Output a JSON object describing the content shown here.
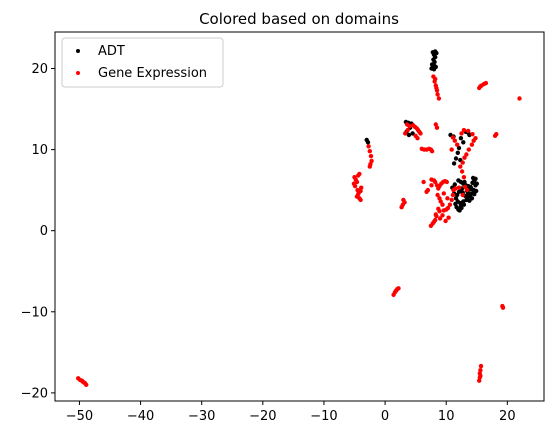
{
  "chart_data": {
    "type": "scatter",
    "title": "Colored based on domains",
    "xlabel": "",
    "ylabel": "",
    "xlim": [
      -54,
      26
    ],
    "ylim": [
      -21,
      24.5
    ],
    "xticks": [
      -50,
      -40,
      -30,
      -20,
      -10,
      0,
      10,
      20
    ],
    "yticks": [
      -20,
      -10,
      0,
      10,
      20
    ],
    "grid": false,
    "legend_position": "top-left",
    "series": [
      {
        "name": "ADT",
        "color": "#000000",
        "points": [
          [
            7.8,
            22.0
          ],
          [
            8.0,
            21.7
          ],
          [
            8.2,
            21.4
          ],
          [
            7.9,
            21.1
          ],
          [
            8.1,
            20.8
          ],
          [
            7.7,
            20.5
          ],
          [
            8.3,
            20.2
          ],
          [
            8.0,
            19.9
          ],
          [
            8.4,
            21.9
          ],
          [
            7.6,
            20.0
          ],
          [
            8.1,
            20.3
          ],
          [
            8.2,
            22.1
          ],
          [
            3.4,
            13.4
          ],
          [
            3.8,
            13.3
          ],
          [
            4.3,
            13.2
          ],
          [
            4.1,
            12.7
          ],
          [
            3.5,
            12.2
          ],
          [
            4.5,
            12.0
          ],
          [
            3.9,
            11.8
          ],
          [
            -3.0,
            11.2
          ],
          [
            -2.8,
            10.9
          ],
          [
            13.2,
            12.2
          ],
          [
            13.6,
            12.1
          ],
          [
            13.8,
            11.8
          ],
          [
            12.4,
            11.4
          ],
          [
            12.8,
            10.9
          ],
          [
            12.1,
            10.2
          ],
          [
            11.9,
            9.6
          ],
          [
            11.6,
            8.9
          ],
          [
            11.3,
            8.3
          ],
          [
            12.3,
            8.7
          ],
          [
            12.0,
            6.2
          ],
          [
            12.4,
            6.0
          ],
          [
            12.8,
            5.8
          ],
          [
            13.2,
            5.6
          ],
          [
            13.6,
            5.5
          ],
          [
            14.0,
            5.4
          ],
          [
            14.3,
            5.9
          ],
          [
            14.6,
            6.2
          ],
          [
            14.8,
            5.6
          ],
          [
            14.5,
            5.0
          ],
          [
            14.2,
            4.6
          ],
          [
            13.9,
            4.3
          ],
          [
            13.5,
            4.1
          ],
          [
            13.1,
            4.3
          ],
          [
            12.7,
            4.7
          ],
          [
            12.4,
            5.1
          ],
          [
            12.1,
            4.8
          ],
          [
            11.8,
            4.4
          ],
          [
            11.6,
            4.0
          ],
          [
            11.9,
            3.6
          ],
          [
            12.3,
            3.4
          ],
          [
            12.8,
            3.6
          ],
          [
            13.3,
            3.8
          ],
          [
            13.8,
            3.7
          ],
          [
            14.2,
            4.0
          ],
          [
            14.6,
            4.5
          ],
          [
            14.9,
            4.9
          ],
          [
            15.0,
            5.8
          ],
          [
            14.8,
            6.4
          ],
          [
            14.4,
            6.5
          ],
          [
            13.0,
            6.0
          ],
          [
            12.6,
            5.2
          ],
          [
            13.4,
            4.9
          ],
          [
            13.9,
            5.1
          ],
          [
            12.9,
            3.2
          ],
          [
            12.5,
            2.8
          ],
          [
            12.2,
            2.5
          ],
          [
            11.7,
            2.9
          ],
          [
            11.5,
            3.3
          ],
          [
            12.0,
            2.6
          ],
          [
            12.4,
            3.0
          ],
          [
            13.6,
            4.6
          ],
          [
            14.1,
            5.2
          ],
          [
            11.3,
            4.6
          ],
          [
            11.0,
            5.3
          ],
          [
            11.4,
            5.7
          ],
          [
            10.7,
            11.8
          ],
          [
            11.2,
            11.6
          ]
        ]
      },
      {
        "name": "Gene Expression",
        "color": "#ff0000",
        "points": [
          [
            7.9,
            19.0
          ],
          [
            8.1,
            18.4
          ],
          [
            8.3,
            17.9
          ],
          [
            8.5,
            17.3
          ],
          [
            8.6,
            16.8
          ],
          [
            8.8,
            16.3
          ],
          [
            8.2,
            18.7
          ],
          [
            8.4,
            17.6
          ],
          [
            15.4,
            17.6
          ],
          [
            15.8,
            17.9
          ],
          [
            16.2,
            18.1
          ],
          [
            16.5,
            18.2
          ],
          [
            15.6,
            17.8
          ],
          [
            22.0,
            16.3
          ],
          [
            18.0,
            11.7
          ],
          [
            18.2,
            11.9
          ],
          [
            3.6,
            13.1
          ],
          [
            4.0,
            12.9
          ],
          [
            4.6,
            13.0
          ],
          [
            4.9,
            12.8
          ],
          [
            5.2,
            12.6
          ],
          [
            5.4,
            12.4
          ],
          [
            5.6,
            12.2
          ],
          [
            5.8,
            12.0
          ],
          [
            3.7,
            12.4
          ],
          [
            3.3,
            12.0
          ],
          [
            5.0,
            11.7
          ],
          [
            5.3,
            11.4
          ],
          [
            6.0,
            10.1
          ],
          [
            6.4,
            10.0
          ],
          [
            6.8,
            10.0
          ],
          [
            7.2,
            10.1
          ],
          [
            7.5,
            10.0
          ],
          [
            7.7,
            9.8
          ],
          [
            -2.7,
            10.4
          ],
          [
            -2.5,
            9.8
          ],
          [
            -2.3,
            9.2
          ],
          [
            -2.2,
            8.6
          ],
          [
            -2.4,
            8.2
          ],
          [
            -2.5,
            7.9
          ],
          [
            -5.0,
            6.6
          ],
          [
            -4.8,
            6.3
          ],
          [
            -4.6,
            6.0
          ],
          [
            -5.1,
            5.8
          ],
          [
            -4.9,
            5.5
          ],
          [
            -4.4,
            6.8
          ],
          [
            -4.2,
            7.0
          ],
          [
            -4.5,
            5.0
          ],
          [
            -4.3,
            4.7
          ],
          [
            -4.0,
            4.9
          ],
          [
            -4.6,
            4.2
          ],
          [
            -4.2,
            4.0
          ],
          [
            -4.0,
            3.8
          ],
          [
            -4.4,
            4.5
          ],
          [
            -3.9,
            5.3
          ],
          [
            2.9,
            3.2
          ],
          [
            3.2,
            3.5
          ],
          [
            3.0,
            3.8
          ],
          [
            2.7,
            2.9
          ],
          [
            6.8,
            4.8
          ],
          [
            7.0,
            5.0
          ],
          [
            8.0,
            6.2
          ],
          [
            8.2,
            6.0
          ],
          [
            8.5,
            5.6
          ],
          [
            8.7,
            5.2
          ],
          [
            8.9,
            5.5
          ],
          [
            9.2,
            5.8
          ],
          [
            9.5,
            6.0
          ],
          [
            9.8,
            6.1
          ],
          [
            10.1,
            6.0
          ],
          [
            8.6,
            4.4
          ],
          [
            8.9,
            4.0
          ],
          [
            9.1,
            3.6
          ],
          [
            9.4,
            3.2
          ],
          [
            8.7,
            2.7
          ],
          [
            8.9,
            2.4
          ],
          [
            8.4,
            1.8
          ],
          [
            8.2,
            1.3
          ],
          [
            7.8,
            0.9
          ],
          [
            7.5,
            0.6
          ],
          [
            8.0,
            1.1
          ],
          [
            8.3,
            2.0
          ],
          [
            9.0,
            1.5
          ],
          [
            9.4,
            1.9
          ],
          [
            9.6,
            2.5
          ],
          [
            10.0,
            2.6
          ],
          [
            10.3,
            2.8
          ],
          [
            10.6,
            3.2
          ],
          [
            10.9,
            3.8
          ],
          [
            11.1,
            4.4
          ],
          [
            11.2,
            5.0
          ],
          [
            11.5,
            5.2
          ],
          [
            12.1,
            5.3
          ],
          [
            12.7,
            4.4
          ],
          [
            13.4,
            5.0
          ],
          [
            13.1,
            5.4
          ],
          [
            12.9,
            6.6
          ],
          [
            12.6,
            7.3
          ],
          [
            12.3,
            7.9
          ],
          [
            12.7,
            8.4
          ],
          [
            13.0,
            9.0
          ],
          [
            13.3,
            9.4
          ],
          [
            13.7,
            10.0
          ],
          [
            14.2,
            10.6
          ],
          [
            14.5,
            11.1
          ],
          [
            14.8,
            11.4
          ],
          [
            14.3,
            11.9
          ],
          [
            13.6,
            12.3
          ],
          [
            12.9,
            12.4
          ],
          [
            12.5,
            12.0
          ],
          [
            11.8,
            10.6
          ],
          [
            11.4,
            11.1
          ],
          [
            11.1,
            11.5
          ],
          [
            10.9,
            10.0
          ],
          [
            8.3,
            13.1
          ],
          [
            8.5,
            12.7
          ],
          [
            6.3,
            6.0
          ],
          [
            7.6,
            6.3
          ],
          [
            9.6,
            4.6
          ],
          [
            10.2,
            4.0
          ],
          [
            7.6,
            5.6
          ],
          [
            9.9,
            1.2
          ],
          [
            10.4,
            1.6
          ],
          [
            1.4,
            -7.9
          ],
          [
            1.6,
            -7.6
          ],
          [
            1.8,
            -7.4
          ],
          [
            2.0,
            -7.2
          ],
          [
            2.2,
            -7.1
          ],
          [
            19.2,
            -9.3
          ],
          [
            19.3,
            -9.5
          ],
          [
            15.7,
            -16.7
          ],
          [
            15.6,
            -17.2
          ],
          [
            15.5,
            -17.6
          ],
          [
            15.5,
            -18.1
          ],
          [
            15.4,
            -18.5
          ],
          [
            15.6,
            -17.9
          ],
          [
            -50.2,
            -18.2
          ],
          [
            -49.9,
            -18.4
          ],
          [
            -49.6,
            -18.5
          ],
          [
            -49.3,
            -18.7
          ],
          [
            -49.1,
            -18.8
          ],
          [
            -48.9,
            -19.0
          ],
          [
            -49.5,
            -18.6
          ]
        ]
      }
    ]
  }
}
